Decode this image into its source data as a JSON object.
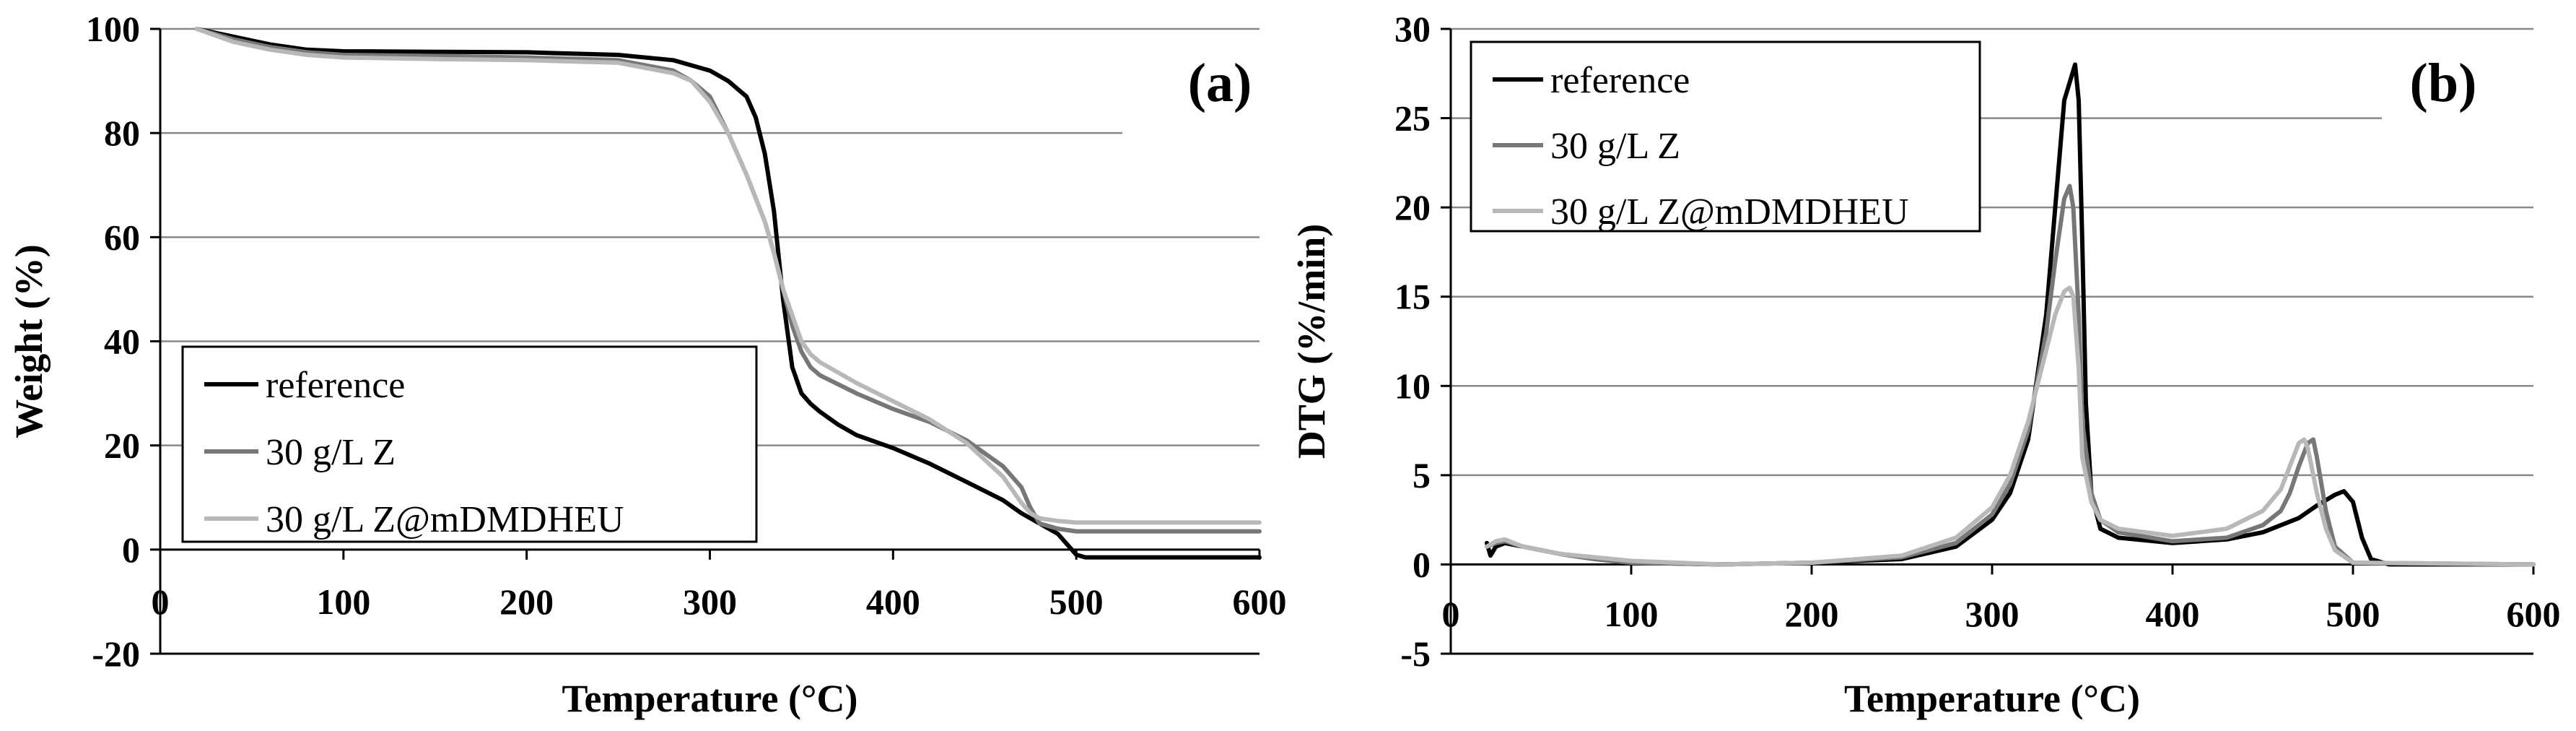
{
  "chart_data": [
    {
      "type": "line",
      "panel_label": "(a)",
      "xlabel": "Temperature (°C)",
      "ylabel": "Weight (%)",
      "xlim": [
        0,
        600
      ],
      "ylim": [
        -20,
        100
      ],
      "xticks": [
        0,
        100,
        200,
        300,
        400,
        500,
        600
      ],
      "yticks": [
        -20,
        0,
        20,
        40,
        60,
        80,
        100
      ],
      "grid": true,
      "legend_position": "bottom-left",
      "series": [
        {
          "name": "reference",
          "color": "#000000",
          "x": [
            20,
            40,
            60,
            80,
            100,
            150,
            200,
            250,
            280,
            300,
            310,
            320,
            325,
            330,
            335,
            340,
            345,
            350,
            355,
            360,
            370,
            380,
            400,
            420,
            440,
            460,
            470,
            480,
            490,
            495,
            500,
            505,
            520,
            550,
            600
          ],
          "y": [
            100,
            98.5,
            97,
            96,
            95.7,
            95.6,
            95.5,
            95,
            94,
            92,
            90,
            87,
            83,
            76,
            65,
            48,
            35,
            30,
            28,
            26.5,
            24,
            22,
            19.5,
            16.5,
            13,
            9.5,
            7,
            5,
            3,
            1,
            -1,
            -1.5,
            -1.5,
            -1.5,
            -1.5
          ]
        },
        {
          "name": "30 g/L Z",
          "color": "#777777",
          "x": [
            20,
            40,
            60,
            80,
            100,
            150,
            200,
            250,
            280,
            290,
            300,
            310,
            320,
            330,
            335,
            340,
            345,
            350,
            355,
            360,
            380,
            400,
            420,
            440,
            460,
            470,
            475,
            480,
            490,
            500,
            550,
            600
          ],
          "y": [
            100,
            98,
            96.5,
            95.5,
            95,
            94.8,
            94.5,
            94,
            92,
            90,
            87,
            80,
            72,
            63,
            57,
            50,
            43,
            38,
            35,
            33.5,
            30,
            27,
            24.5,
            21,
            16,
            12,
            8,
            5,
            4,
            3.5,
            3.5,
            3.5
          ]
        },
        {
          "name": "30 g/L Z@mDMDHEU",
          "color": "#b8b8b8",
          "x": [
            20,
            40,
            60,
            80,
            100,
            150,
            200,
            250,
            280,
            290,
            300,
            310,
            320,
            330,
            335,
            340,
            345,
            350,
            355,
            360,
            380,
            400,
            420,
            440,
            460,
            470,
            475,
            480,
            490,
            500,
            550,
            600
          ],
          "y": [
            100,
            97.5,
            96,
            95,
            94.5,
            94.2,
            94,
            93.5,
            91.5,
            90,
            86,
            80,
            72,
            63,
            57,
            50,
            45,
            40,
            37.5,
            36,
            32,
            28.5,
            25,
            20.5,
            14,
            9,
            7,
            6,
            5.5,
            5.2,
            5.2,
            5.2
          ]
        }
      ]
    },
    {
      "type": "line",
      "panel_label": "(b)",
      "xlabel": "Temperature (°C)",
      "ylabel": "DTG (%/min)",
      "xlim": [
        0,
        600
      ],
      "ylim": [
        -5,
        30
      ],
      "xticks": [
        0,
        100,
        200,
        300,
        400,
        500,
        600
      ],
      "yticks": [
        -5,
        0,
        5,
        10,
        15,
        20,
        25,
        30
      ],
      "grid": true,
      "legend_position": "top-left",
      "series": [
        {
          "name": "reference",
          "color": "#000000",
          "x": [
            20,
            22,
            25,
            30,
            40,
            60,
            80,
            100,
            150,
            200,
            250,
            280,
            300,
            310,
            320,
            330,
            335,
            340,
            343,
            346,
            348,
            350,
            352,
            355,
            360,
            370,
            400,
            430,
            450,
            470,
            480,
            490,
            495,
            500,
            505,
            510,
            520,
            600
          ],
          "y": [
            1.2,
            0.5,
            1.0,
            1.2,
            1.0,
            0.6,
            0.3,
            0.1,
            0.0,
            0.1,
            0.3,
            1.0,
            2.5,
            4.0,
            7.0,
            14.0,
            20.0,
            26.0,
            27.0,
            28.0,
            26.0,
            18.0,
            9.0,
            4.0,
            2.0,
            1.5,
            1.2,
            1.4,
            1.8,
            2.6,
            3.3,
            3.9,
            4.1,
            3.5,
            1.5,
            0.3,
            0.0,
            0.0
          ]
        },
        {
          "name": "30 g/L Z",
          "color": "#777777",
          "x": [
            20,
            25,
            30,
            40,
            60,
            80,
            100,
            150,
            200,
            250,
            280,
            300,
            310,
            320,
            330,
            335,
            340,
            343,
            345,
            348,
            350,
            355,
            360,
            370,
            400,
            430,
            450,
            460,
            465,
            470,
            475,
            478,
            480,
            485,
            490,
            500,
            600
          ],
          "y": [
            1.0,
            1.2,
            1.3,
            1.0,
            0.6,
            0.3,
            0.1,
            0.0,
            0.1,
            0.4,
            1.2,
            2.8,
            4.5,
            7.5,
            13.0,
            17.0,
            20.5,
            21.2,
            20.0,
            14.0,
            8.0,
            4.0,
            2.5,
            1.8,
            1.3,
            1.5,
            2.2,
            3.0,
            4.0,
            5.5,
            6.8,
            7.0,
            6.0,
            3.0,
            1.0,
            0.1,
            0.0
          ]
        },
        {
          "name": "30 g/L Z@mDMDHEU",
          "color": "#b8b8b8",
          "x": [
            20,
            25,
            30,
            35,
            40,
            60,
            80,
            100,
            150,
            200,
            250,
            280,
            300,
            310,
            320,
            330,
            335,
            340,
            343,
            345,
            348,
            350,
            355,
            360,
            370,
            400,
            430,
            450,
            460,
            465,
            470,
            473,
            475,
            480,
            485,
            490,
            500,
            600
          ],
          "y": [
            1.0,
            1.3,
            1.4,
            1.2,
            1.0,
            0.6,
            0.4,
            0.2,
            0.0,
            0.1,
            0.5,
            1.5,
            3.2,
            5.0,
            8.0,
            12.0,
            14.0,
            15.3,
            15.5,
            15.0,
            11.0,
            6.0,
            3.5,
            2.5,
            2.0,
            1.6,
            2.0,
            3.0,
            4.2,
            5.5,
            6.8,
            7.0,
            6.5,
            4.0,
            2.0,
            0.8,
            0.1,
            0.0
          ]
        }
      ]
    }
  ]
}
